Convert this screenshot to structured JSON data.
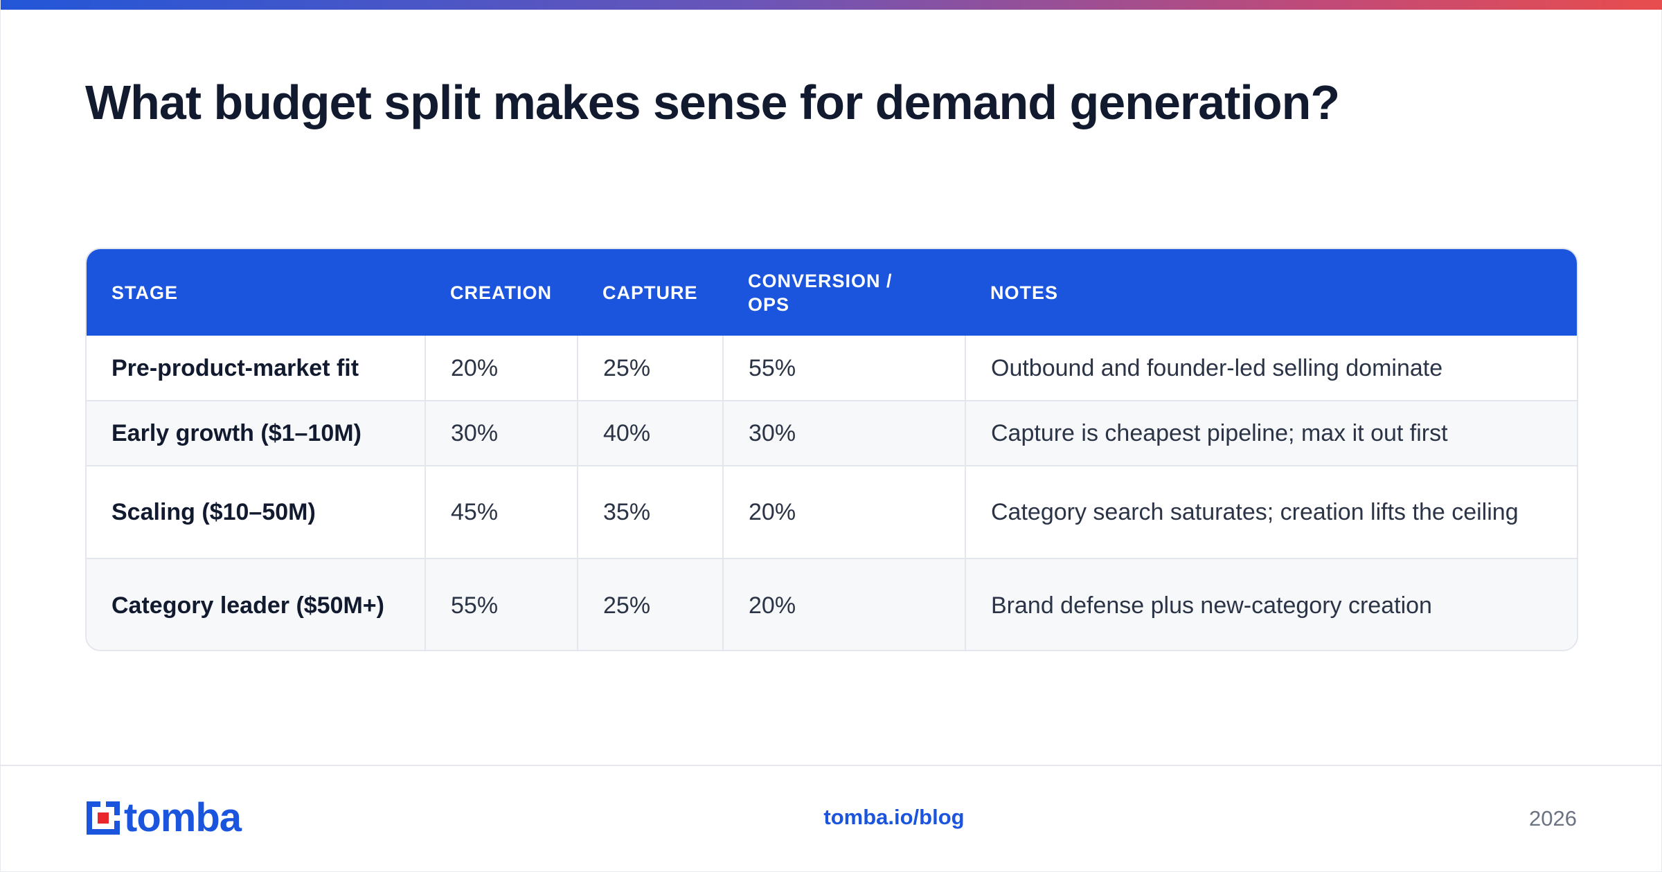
{
  "title": "What budget split makes sense for demand generation?",
  "table": {
    "headers": [
      "Stage",
      "Creation",
      "Capture",
      "Conversion / Ops",
      "Notes"
    ],
    "rows": [
      {
        "stage": "Pre-product-market fit",
        "creation": "20%",
        "capture": "25%",
        "conversion": "55%",
        "notes": "Outbound and founder-led selling dominate"
      },
      {
        "stage": "Early growth ($1–10M)",
        "creation": "30%",
        "capture": "40%",
        "conversion": "30%",
        "notes": "Capture is cheapest pipeline; max it out first"
      },
      {
        "stage": "Scaling ($10–50M)",
        "creation": "45%",
        "capture": "35%",
        "conversion": "20%",
        "notes": "Category search saturates; creation lifts the ceiling"
      },
      {
        "stage": "Category leader ($50M+)",
        "creation": "55%",
        "capture": "25%",
        "conversion": "20%",
        "notes": "Brand defense plus new-category creation"
      }
    ]
  },
  "footer": {
    "logo_text": "tomba",
    "url": "tomba.io/blog",
    "year": "2026"
  },
  "colors": {
    "accent": "#1b55de",
    "title": "#111a2e",
    "logo_red": "#e8262b",
    "gradient_start": "#2256d8",
    "gradient_end": "#e84d4d"
  },
  "icons": {
    "logo": "tomba-logo-icon"
  }
}
